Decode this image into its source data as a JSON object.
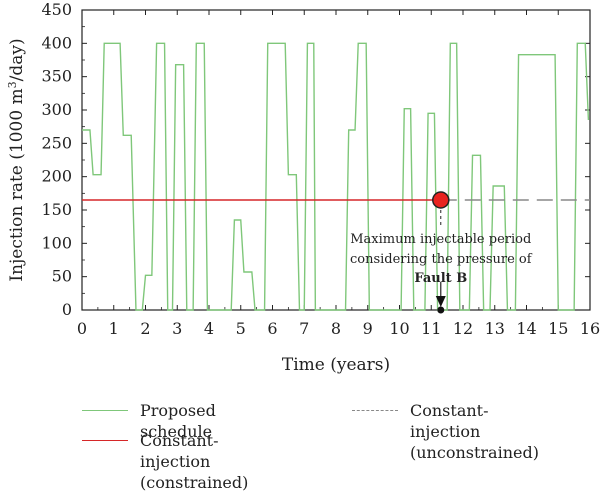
{
  "chart_data": {
    "type": "line",
    "xlabel": "Time (years)",
    "ylabel_main": "Injection rate (1000 m",
    "ylabel_sup": "3",
    "ylabel_tail": "/day)",
    "xlim": [
      0,
      16
    ],
    "ylim": [
      0,
      450
    ],
    "xticks": [
      "0",
      "1",
      "2",
      "3",
      "4",
      "5",
      "6",
      "7",
      "8",
      "9",
      "10",
      "11",
      "12",
      "13",
      "14",
      "15",
      "16"
    ],
    "yticks": [
      "0",
      "50",
      "100",
      "150",
      "200",
      "250",
      "300",
      "350",
      "400",
      "450"
    ],
    "grid": false,
    "series": [
      {
        "name": "Proposed schedule",
        "color": "#7fc77a",
        "style": "solid",
        "x": [
          0,
          0.25,
          0.35,
          0.6,
          0.7,
          1.2,
          1.3,
          1.55,
          1.7,
          1.9,
          2.0,
          2.2,
          2.35,
          2.6,
          2.7,
          2.85,
          2.95,
          3.2,
          3.3,
          3.5,
          3.6,
          3.85,
          3.95,
          4.7,
          4.8,
          5.0,
          5.1,
          5.35,
          5.45,
          5.75,
          5.85,
          6.4,
          6.5,
          6.75,
          6.85,
          7.0,
          7.1,
          7.3,
          7.35,
          8.3,
          8.4,
          8.6,
          8.7,
          8.95,
          9.05,
          10.05,
          10.15,
          10.35,
          10.45,
          10.8,
          10.9,
          11.1,
          11.2,
          11.5,
          11.6,
          11.8,
          11.9,
          12.2,
          12.3,
          12.55,
          12.65,
          12.85,
          12.95,
          13.3,
          13.4,
          13.65,
          13.75,
          14.9,
          15.0,
          15.5,
          15.6,
          15.85,
          15.95
        ],
        "y": [
          270,
          270,
          203,
          203,
          400,
          400,
          262,
          262,
          0,
          0,
          52,
          52,
          400,
          400,
          0,
          0,
          368,
          368,
          0,
          0,
          400,
          400,
          0,
          0,
          135,
          135,
          57,
          57,
          0,
          0,
          400,
          400,
          203,
          203,
          0,
          0,
          400,
          400,
          0,
          0,
          270,
          270,
          400,
          400,
          0,
          0,
          302,
          302,
          0,
          0,
          295,
          295,
          0,
          0,
          400,
          400,
          0,
          0,
          232,
          232,
          0,
          0,
          186,
          186,
          0,
          0,
          383,
          383,
          0,
          0,
          400,
          400,
          285
        ]
      },
      {
        "name": "Constant-injection (constrained)",
        "color": "#d62728",
        "style": "solid",
        "x": [
          0,
          11.3
        ],
        "y": [
          165,
          165
        ]
      },
      {
        "name": "Constant-injection (unconstrained)",
        "color": "#888888",
        "style": "dashed",
        "x": [
          11.3,
          16
        ],
        "y": [
          165,
          165
        ]
      }
    ],
    "marker": {
      "x": 11.3,
      "y": 165,
      "color": "#e8231f",
      "edge": "#222222"
    },
    "annotation": {
      "line1": "Maximum injectable period",
      "line2": "considering the pressure of",
      "line3": "Fault B",
      "arrow_x": 11.3
    }
  },
  "legend": {
    "items": [
      {
        "label": "Proposed schedule",
        "color": "#7fc77a",
        "style": "solid"
      },
      {
        "label": "Constant-injection\n(unconstrained)",
        "color": "#888888",
        "style": "dashed"
      },
      {
        "label": "Constant-injection\n(constrained)",
        "color": "#d62728",
        "style": "solid"
      }
    ]
  }
}
